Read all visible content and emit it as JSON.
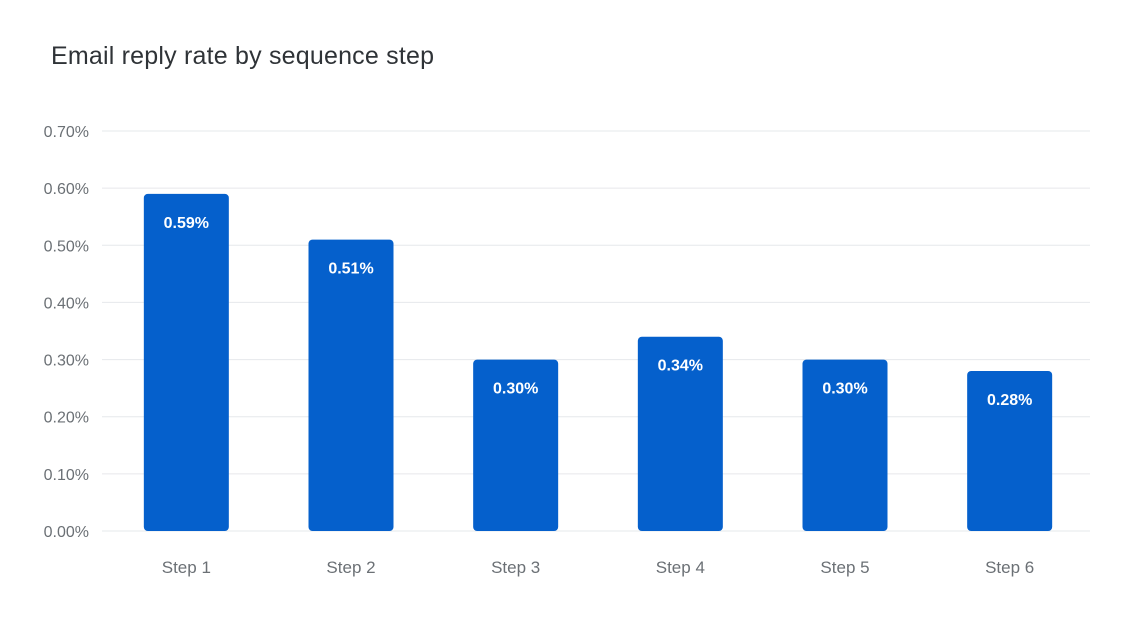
{
  "chart_data": {
    "type": "bar",
    "title": "Email reply rate by sequence step",
    "xlabel": "",
    "ylabel": "",
    "categories": [
      "Step 1",
      "Step 2",
      "Step 3",
      "Step 4",
      "Step 5",
      "Step 6"
    ],
    "values": [
      0.59,
      0.51,
      0.3,
      0.34,
      0.3,
      0.28
    ],
    "data_labels": [
      "0.59%",
      "0.51%",
      "0.30%",
      "0.34%",
      "0.30%",
      "0.28%"
    ],
    "yticks": [
      0,
      0.1,
      0.2,
      0.3,
      0.4,
      0.5,
      0.6,
      0.7
    ],
    "ytick_labels": [
      "0.00%",
      "0.10%",
      "0.20%",
      "0.30%",
      "0.40%",
      "0.50%",
      "0.60%",
      "0.70%"
    ],
    "ylim": [
      0,
      0.7
    ],
    "grid": true,
    "legend": "none",
    "bar_color": "#0560cc"
  }
}
